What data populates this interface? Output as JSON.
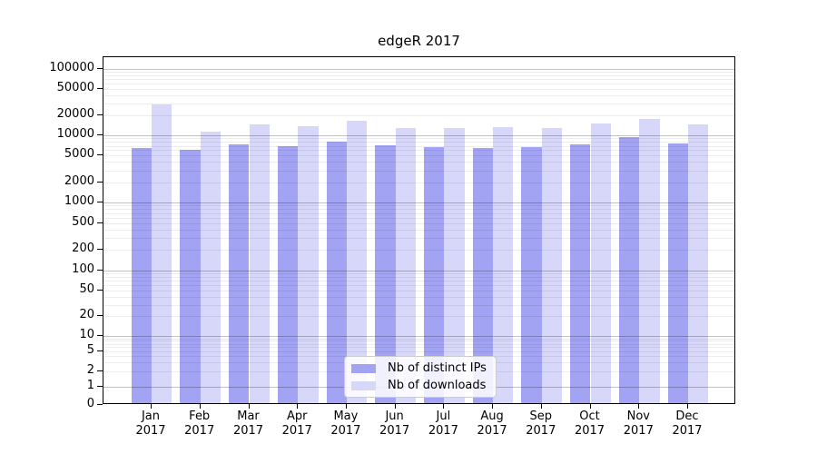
{
  "figure": {
    "background": "#ffffff",
    "axis_color": "#000000"
  },
  "chart_data": {
    "type": "bar",
    "title": "edgeR 2017",
    "categories": [
      "Jan",
      "Feb",
      "Mar",
      "Apr",
      "May",
      "Jun",
      "Jul",
      "Aug",
      "Sep",
      "Oct",
      "Nov",
      "Dec"
    ],
    "year_label": "2017",
    "series": [
      {
        "name": "Nb of distinct IPs",
        "color": "#a3a3f3",
        "values": [
          6000,
          5700,
          7000,
          6500,
          7500,
          6600,
          6300,
          6100,
          6200,
          6900,
          8800,
          7200
        ]
      },
      {
        "name": "Nb of downloads",
        "color": "#d7d7fa",
        "values": [
          27700,
          10800,
          13600,
          13000,
          15400,
          12200,
          12200,
          12500,
          12100,
          14200,
          16400,
          13700
        ]
      }
    ],
    "xlabel": "",
    "ylabel": "",
    "yscale": "symlog",
    "yticks": [
      0,
      1,
      2,
      5,
      10,
      20,
      50,
      100,
      200,
      500,
      1000,
      2000,
      5000,
      10000,
      20000,
      50000,
      100000
    ],
    "ylim": [
      0,
      150000
    ],
    "grid": true,
    "legend_position": "lower center"
  }
}
